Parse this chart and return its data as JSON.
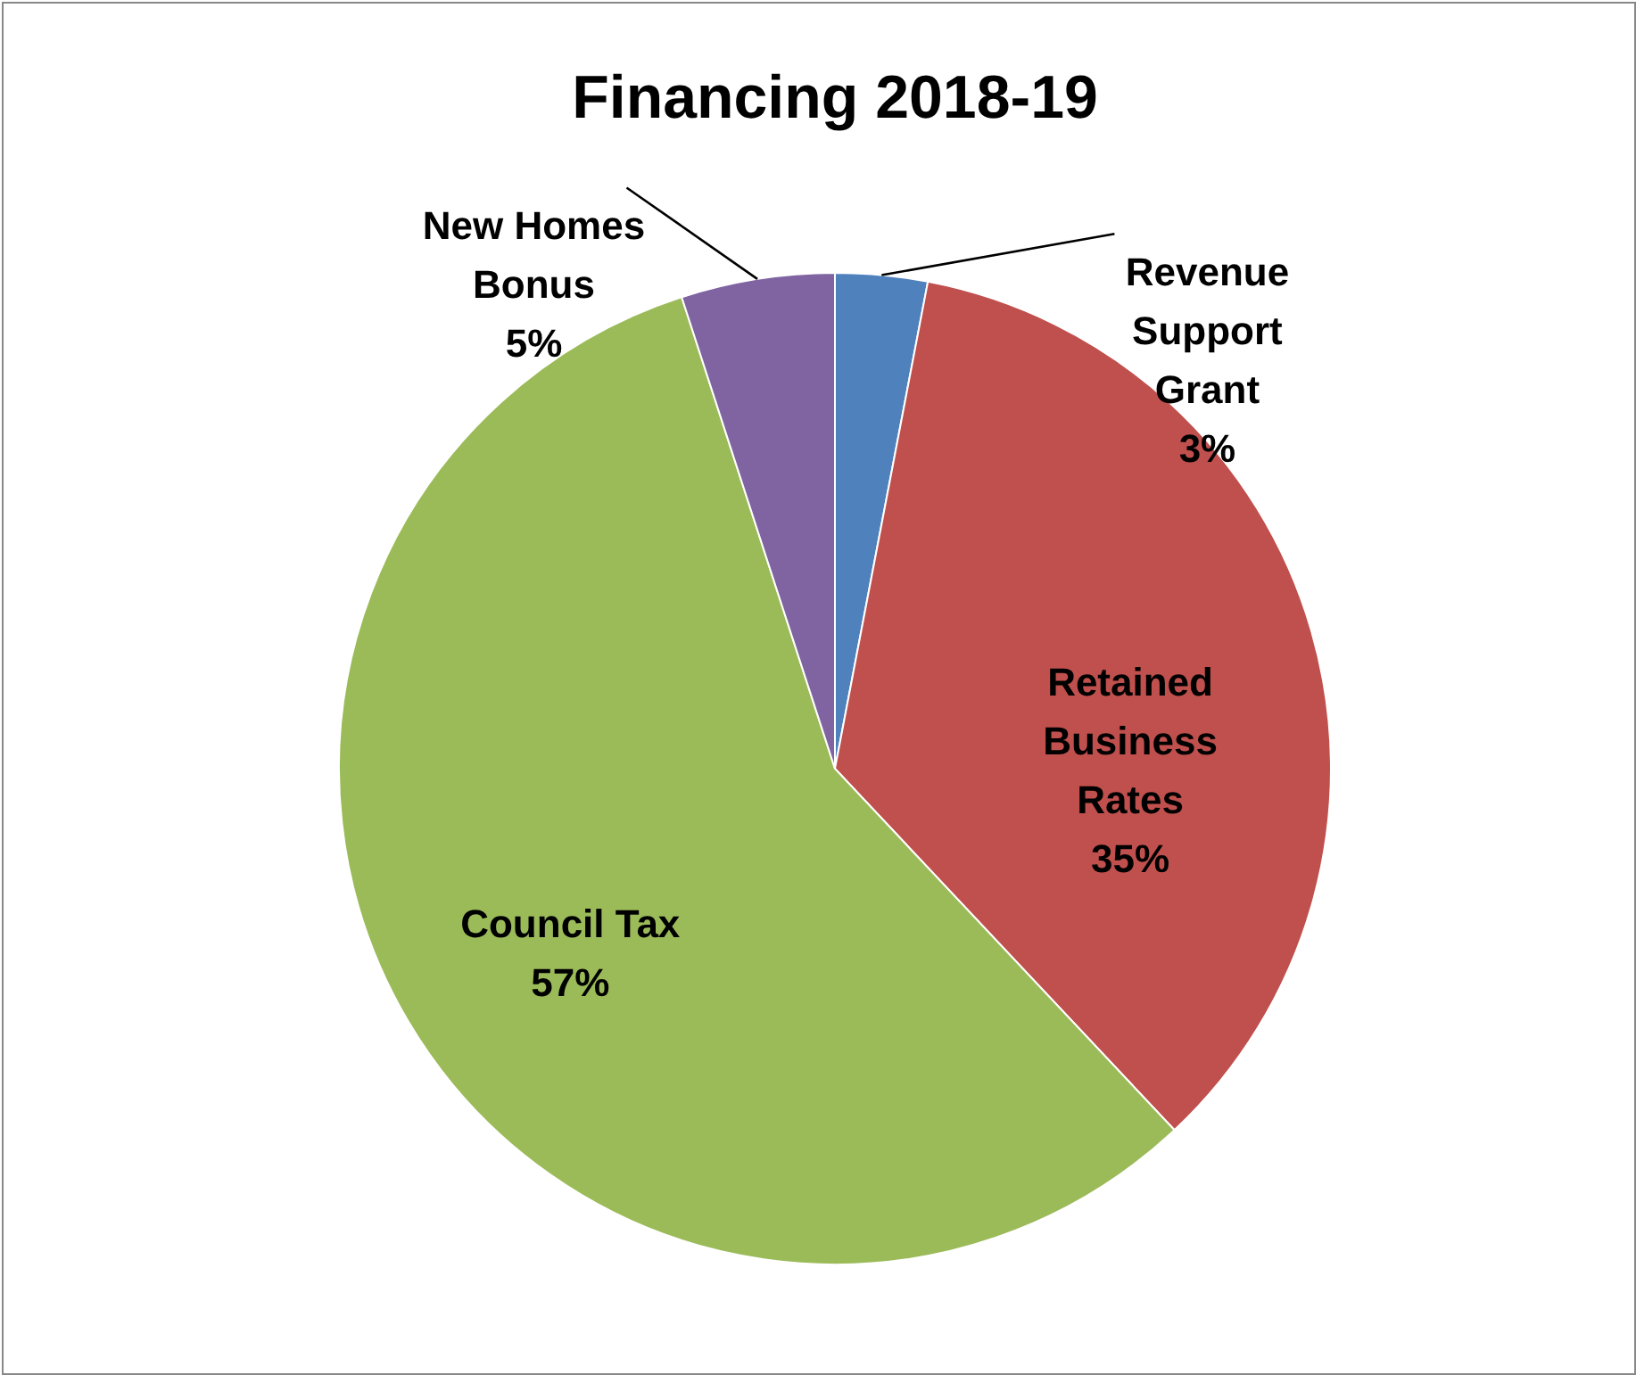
{
  "chart_data": {
    "type": "pie",
    "title": "Financing 2018-19",
    "categories": [
      "Revenue Support Grant",
      "Retained Business Rates",
      "Council Tax",
      "New Homes Bonus"
    ],
    "values": [
      3,
      35,
      57,
      5
    ],
    "value_labels": [
      "3%",
      "35%",
      "57%",
      "5%"
    ],
    "colors": [
      "#4f81bd",
      "#c0504d",
      "#9bbb59",
      "#8064a2"
    ]
  }
}
